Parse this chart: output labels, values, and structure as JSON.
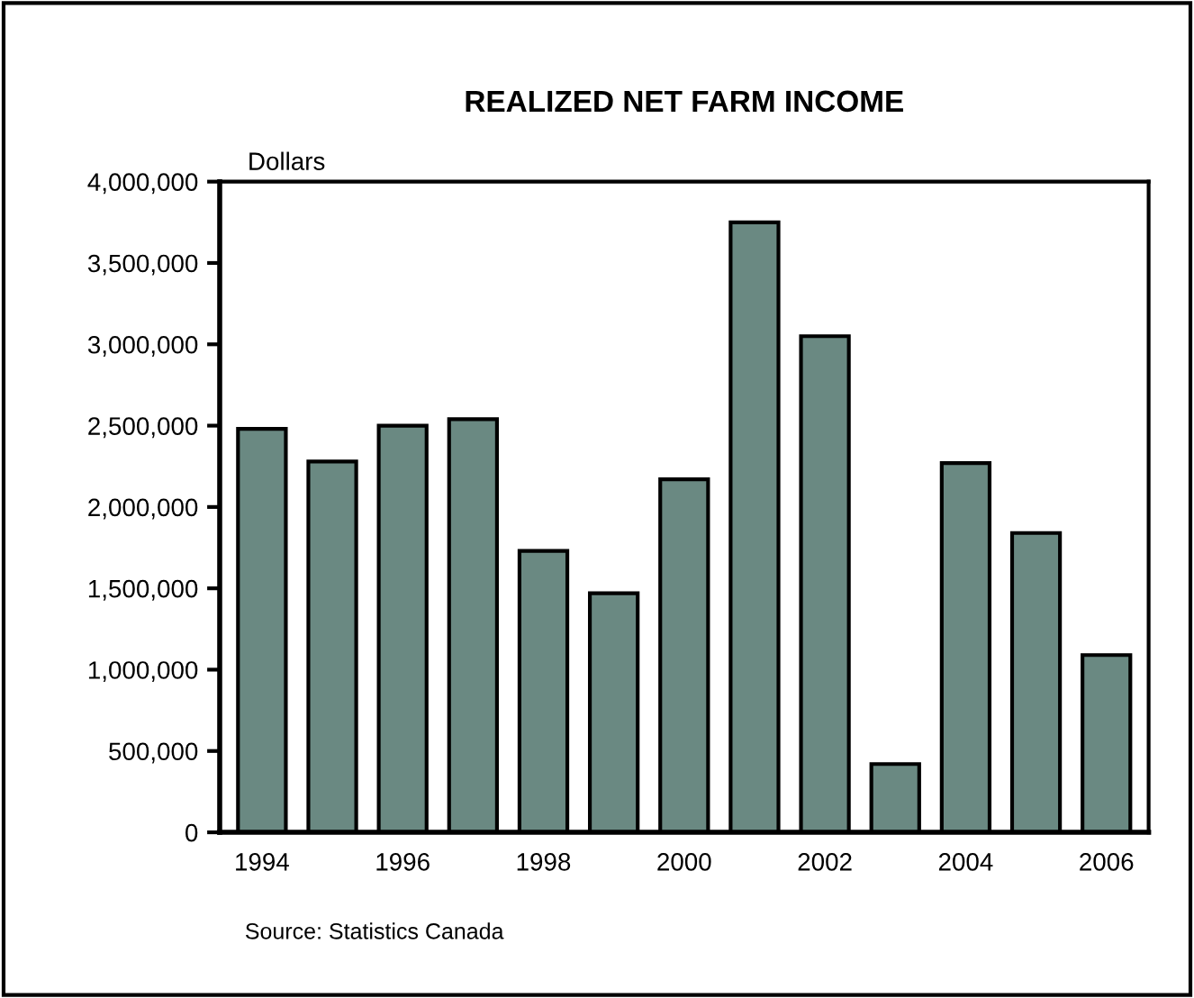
{
  "chart_data": {
    "type": "bar",
    "title": "REALIZED NET FARM INCOME",
    "ylabel": "Dollars",
    "categories": [
      "1994",
      null,
      "1996",
      null,
      "1998",
      null,
      "2000",
      null,
      "2002",
      null,
      "2004",
      null,
      "2006"
    ],
    "values": [
      2480000,
      2280000,
      2500000,
      2540000,
      1730000,
      1470000,
      2170000,
      3750000,
      3050000,
      420000,
      2270000,
      1840000,
      1090000
    ],
    "color": "#6a8982",
    "ylim": [
      0,
      4000000
    ],
    "yticks": [
      {
        "value": 0,
        "label": "0"
      },
      {
        "value": 500000,
        "label": "500,000"
      },
      {
        "value": 1000000,
        "label": "1,000,000"
      },
      {
        "value": 1500000,
        "label": "1,500,000"
      },
      {
        "value": 2000000,
        "label": "2,000,000"
      },
      {
        "value": 2500000,
        "label": "2,500,000"
      },
      {
        "value": 3000000,
        "label": "3,000,000"
      },
      {
        "value": 3500000,
        "label": "3,500,000"
      },
      {
        "value": 4000000,
        "label": "4,000,000"
      }
    ],
    "grid": false,
    "legend": false,
    "annotations": [
      "Source: Statistics Canada"
    ]
  }
}
